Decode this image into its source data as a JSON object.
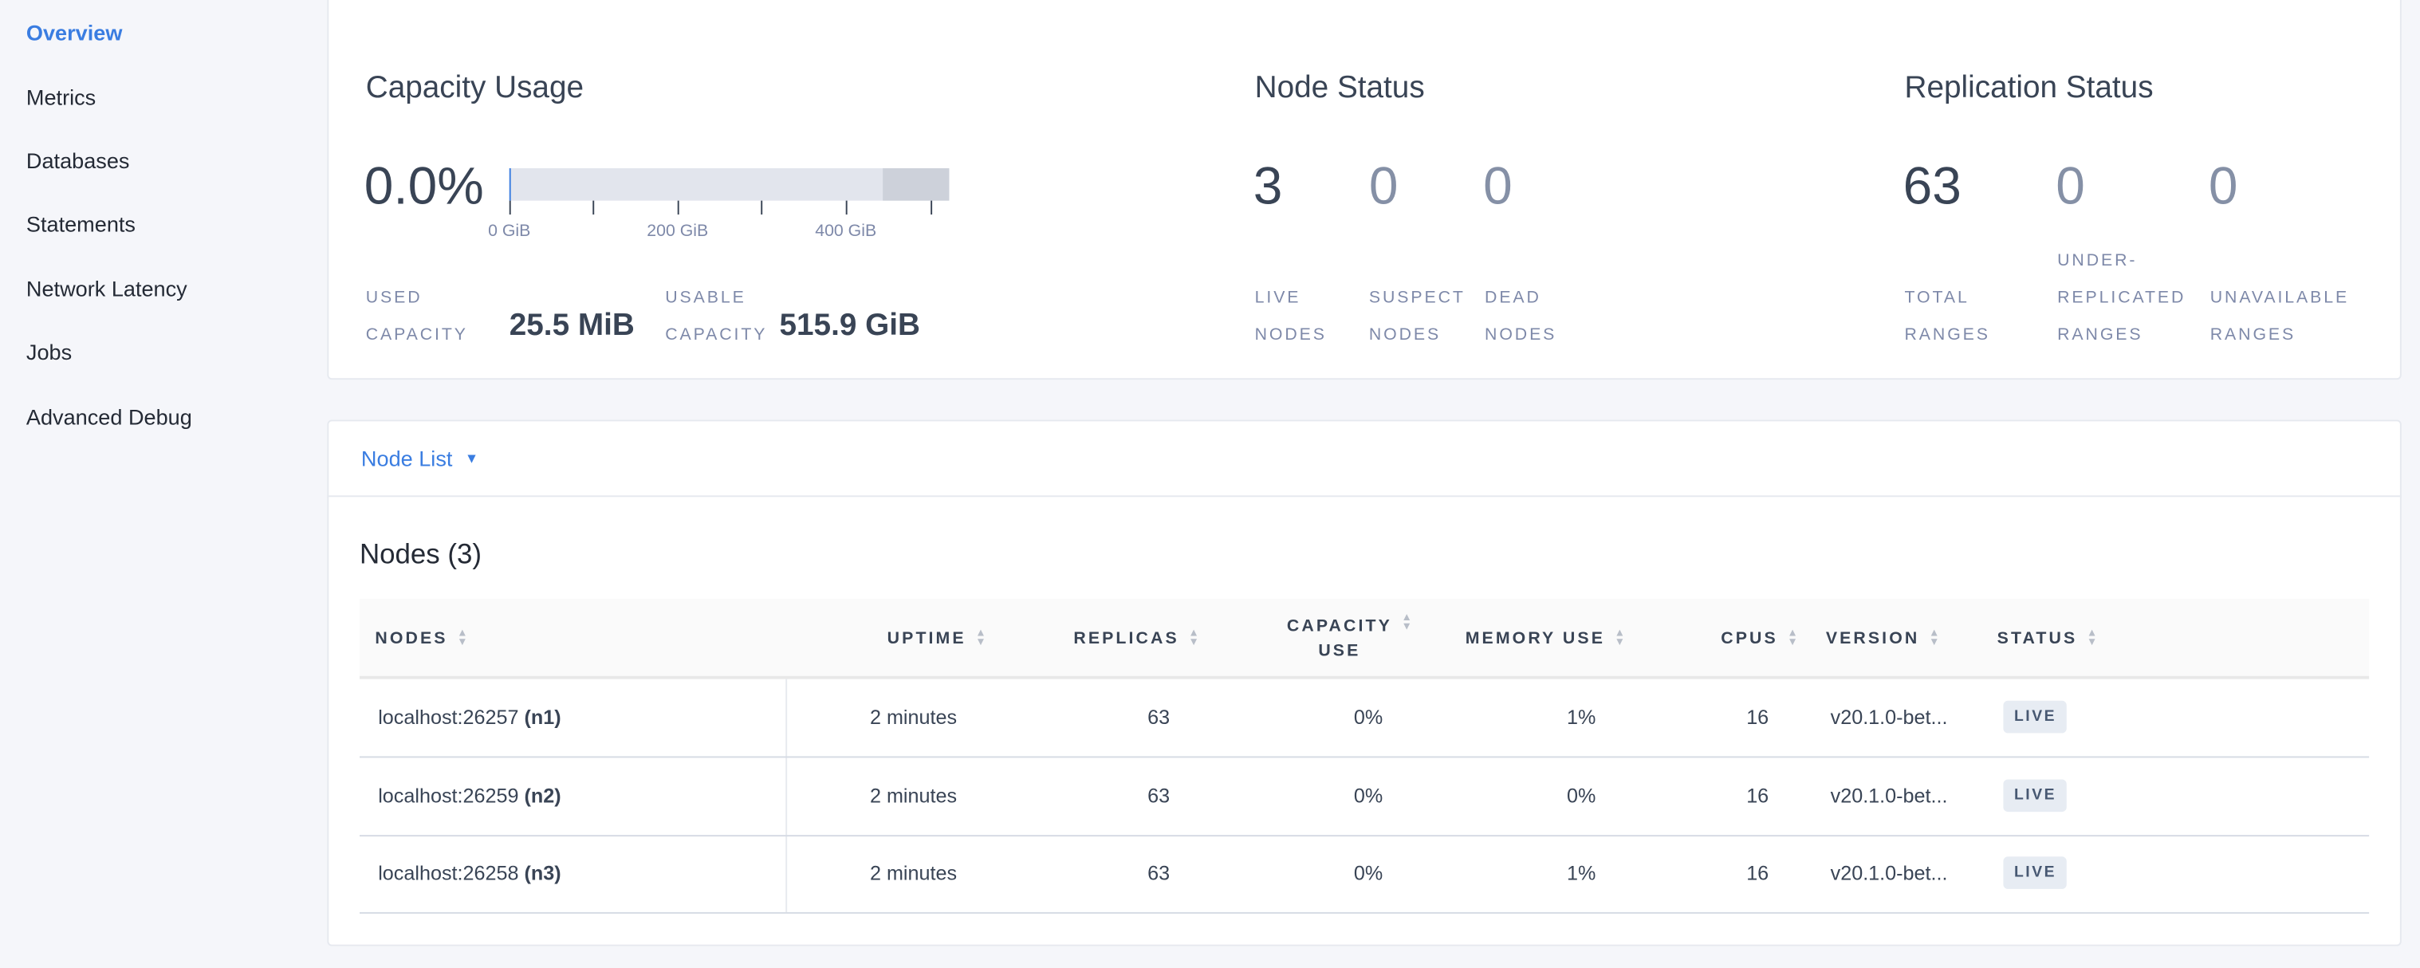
{
  "sidebar": {
    "items": [
      {
        "label": "Overview",
        "active": true
      },
      {
        "label": "Metrics"
      },
      {
        "label": "Databases"
      },
      {
        "label": "Statements"
      },
      {
        "label": "Network Latency"
      },
      {
        "label": "Jobs"
      },
      {
        "label": "Advanced Debug"
      }
    ]
  },
  "capacity": {
    "title": "Capacity Usage",
    "percent": "0.0%",
    "used_fraction": 0.0,
    "bar_ticks": [
      "0 GiB",
      "200 GiB",
      "400 GiB"
    ],
    "used_label_1": "USED",
    "used_label_2": "CAPACITY",
    "used_value": "25.5 MiB",
    "usable_label_1": "USABLE",
    "usable_label_2": "CAPACITY",
    "usable_value": "515.9 GiB"
  },
  "node_status": {
    "title": "Node Status",
    "items": [
      {
        "value": "3",
        "l1": "LIVE",
        "l2": "NODES"
      },
      {
        "value": "0",
        "l1": "SUSPECT",
        "l2": "NODES"
      },
      {
        "value": "0",
        "l1": "DEAD",
        "l2": "NODES"
      }
    ]
  },
  "replication": {
    "title": "Replication Status",
    "items": [
      {
        "value": "63",
        "l1": "TOTAL",
        "l2": "RANGES"
      },
      {
        "value": "0",
        "l1": "UNDER-",
        "l2": "REPLICATED",
        "l3": "RANGES"
      },
      {
        "value": "0",
        "l1": "UNAVAILABLE",
        "l2": "RANGES"
      }
    ]
  },
  "node_list": {
    "dropdown": "Node List",
    "title": "Nodes (3)",
    "columns": [
      "NODES",
      "UPTIME",
      "REPLICAS",
      "CAPACITY",
      "USE",
      "MEMORY USE",
      "CPUS",
      "VERSION",
      "STATUS"
    ],
    "rows": [
      {
        "host": "localhost:26257",
        "id": "(n1)",
        "uptime": "2 minutes",
        "replicas": "63",
        "capacity": "0%",
        "memory": "1%",
        "cpus": "16",
        "version": "v20.1.0-bet...",
        "status": "LIVE"
      },
      {
        "host": "localhost:26259",
        "id": "(n2)",
        "uptime": "2 minutes",
        "replicas": "63",
        "capacity": "0%",
        "memory": "0%",
        "cpus": "16",
        "version": "v20.1.0-bet...",
        "status": "LIVE"
      },
      {
        "host": "localhost:26258",
        "id": "(n3)",
        "uptime": "2 minutes",
        "replicas": "63",
        "capacity": "0%",
        "memory": "1%",
        "cpus": "16",
        "version": "v20.1.0-bet...",
        "status": "LIVE"
      }
    ]
  },
  "colors": {
    "accent": "#3a7de1",
    "text": "#394455",
    "muted": "#7e89a9"
  }
}
